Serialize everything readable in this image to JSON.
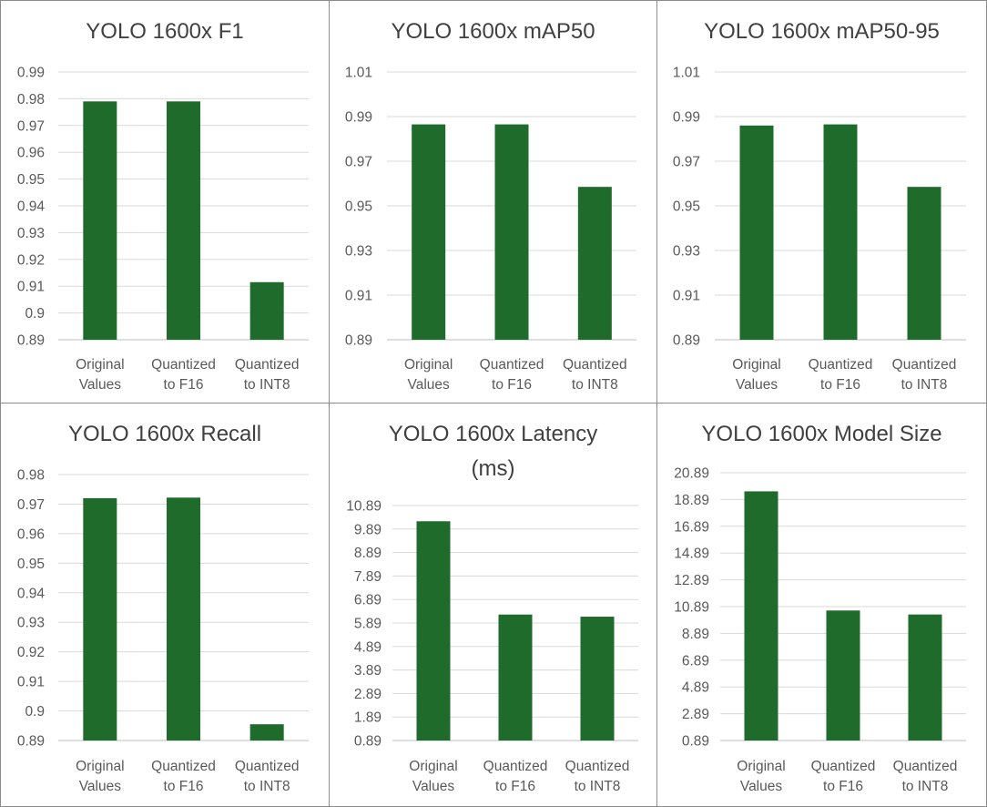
{
  "chart_data": [
    {
      "type": "bar",
      "title": "YOLO 1600x F1",
      "title_lines": [
        "YOLO 1600x F1"
      ],
      "categories": [
        [
          "Original",
          "Values"
        ],
        [
          "Quantized",
          "to F16"
        ],
        [
          "Quantized",
          "to INT8"
        ]
      ],
      "values": [
        0.979,
        0.979,
        0.9115
      ],
      "ylim": [
        0.89,
        0.99
      ],
      "yticks": [
        "0.99",
        "0.98",
        "0.97",
        "0.96",
        "0.95",
        "0.94",
        "0.93",
        "0.92",
        "0.91",
        "0.9",
        "0.89"
      ],
      "xlabel": "",
      "ylabel": "",
      "grid": true,
      "color": "#1e6b2b"
    },
    {
      "type": "bar",
      "title": "YOLO 1600x mAP50",
      "title_lines": [
        "YOLO 1600x mAP50"
      ],
      "categories": [
        [
          "Original",
          "Values"
        ],
        [
          "Quantized",
          "to F16"
        ],
        [
          "Quantized",
          "to INT8"
        ]
      ],
      "values": [
        0.9865,
        0.9865,
        0.9585
      ],
      "ylim": [
        0.89,
        1.01
      ],
      "yticks": [
        "1.01",
        "0.99",
        "0.97",
        "0.95",
        "0.93",
        "0.91",
        "0.89"
      ],
      "xlabel": "",
      "ylabel": "",
      "grid": true,
      "color": "#1e6b2b"
    },
    {
      "type": "bar",
      "title": "YOLO 1600x mAP50-95",
      "title_lines": [
        "YOLO 1600x mAP50-95"
      ],
      "categories": [
        [
          "Original",
          "Values"
        ],
        [
          "Quantized",
          "to F16"
        ],
        [
          "Quantized",
          "to INT8"
        ]
      ],
      "values": [
        0.986,
        0.9865,
        0.9585
      ],
      "ylim": [
        0.89,
        1.01
      ],
      "yticks": [
        "1.01",
        "0.99",
        "0.97",
        "0.95",
        "0.93",
        "0.91",
        "0.89"
      ],
      "xlabel": "",
      "ylabel": "",
      "grid": true,
      "color": "#1e6b2b"
    },
    {
      "type": "bar",
      "title": "YOLO 1600x Recall",
      "title_lines": [
        "YOLO 1600x Recall"
      ],
      "categories": [
        [
          "Original",
          "Values"
        ],
        [
          "Quantized",
          "to F16"
        ],
        [
          "Quantized",
          "to INT8"
        ]
      ],
      "values": [
        0.972,
        0.9722,
        0.8955
      ],
      "ylim": [
        0.89,
        0.98
      ],
      "yticks": [
        "0.98",
        "0.97",
        "0.96",
        "0.95",
        "0.94",
        "0.93",
        "0.92",
        "0.91",
        "0.9",
        "0.89"
      ],
      "xlabel": "",
      "ylabel": "",
      "grid": true,
      "color": "#1e6b2b"
    },
    {
      "type": "bar",
      "title": "YOLO 1600x Latency (ms)",
      "title_lines": [
        "YOLO 1600x Latency",
        "(ms)"
      ],
      "categories": [
        [
          "Original",
          "Values"
        ],
        [
          "Quantized",
          "to F16"
        ],
        [
          "Quantized",
          "to INT8"
        ]
      ],
      "values": [
        10.22,
        6.25,
        6.16
      ],
      "ylim": [
        0.89,
        10.89
      ],
      "yticks": [
        "10.89",
        "9.89",
        "8.89",
        "7.89",
        "6.89",
        "5.89",
        "4.89",
        "3.89",
        "2.89",
        "1.89",
        "0.89"
      ],
      "xlabel": "",
      "ylabel": "",
      "grid": true,
      "color": "#1e6b2b"
    },
    {
      "type": "bar",
      "title": "YOLO 1600x Model Size",
      "title_lines": [
        "YOLO 1600x Model Size"
      ],
      "categories": [
        [
          "Original",
          "Values"
        ],
        [
          "Quantized",
          "to F16"
        ],
        [
          "Quantized",
          "to INT8"
        ]
      ],
      "values": [
        19.5,
        10.6,
        10.3
      ],
      "ylim": [
        0.89,
        20.89
      ],
      "yticks": [
        "20.89",
        "18.89",
        "16.89",
        "14.89",
        "12.89",
        "10.89",
        "8.89",
        "6.89",
        "4.89",
        "2.89",
        "0.89"
      ],
      "xlabel": "",
      "ylabel": "",
      "grid": true,
      "color": "#1e6b2b"
    }
  ]
}
